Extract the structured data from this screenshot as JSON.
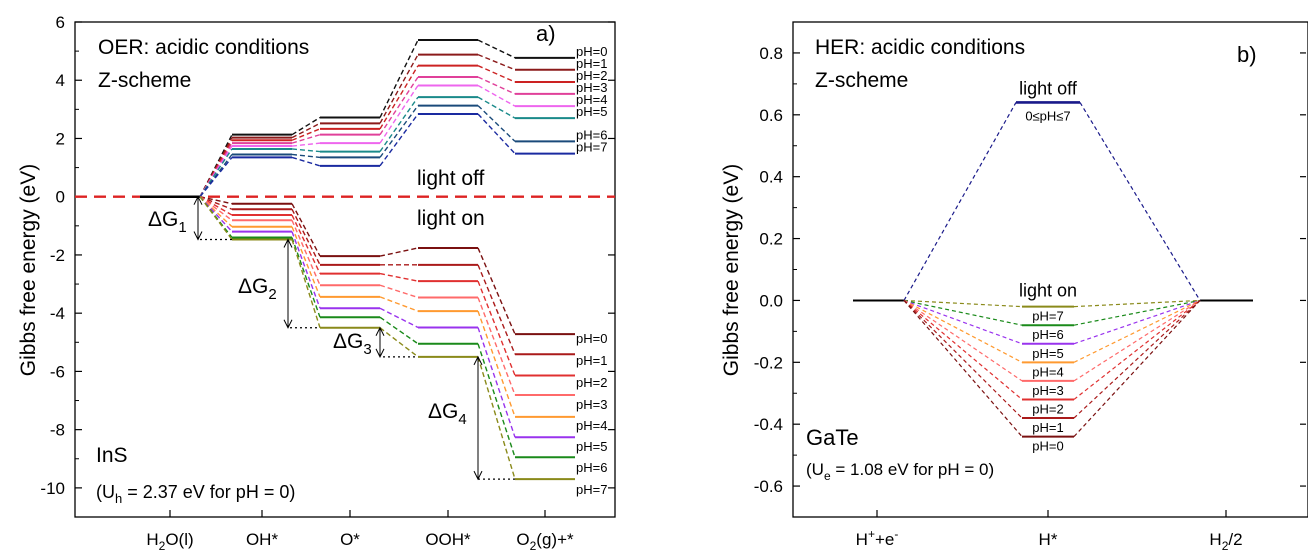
{
  "chart_data": [
    {
      "type": "line",
      "panel_label": "a)",
      "title": "OER: acidic conditions",
      "subtitle": "Z-scheme",
      "material": "InS",
      "note": "(Uₕ = 2.37 eV for pH = 0)",
      "note_parts": {
        "pre": "(U",
        "sub": "h",
        "post": " = 2.37 eV for pH = 0)"
      },
      "ylabel": "Gibbs free energy (eV)",
      "ylim": [
        -11,
        6
      ],
      "yticks": [
        "6",
        "4",
        "2",
        "0",
        "-2",
        "-4",
        "-6",
        "-8",
        "-10"
      ],
      "categories": [
        {
          "pre": "H",
          "sub": "2",
          "post": "O(l)"
        },
        {
          "pre": "OH*",
          "sub": "",
          "post": ""
        },
        {
          "pre": "O*",
          "sub": "",
          "post": ""
        },
        {
          "pre": "OOH*",
          "sub": "",
          "post": ""
        },
        {
          "pre": "O",
          "sub": "2",
          "post": "(g)+*"
        }
      ],
      "divider_y": 0,
      "divider_color": "#dd2222",
      "region_labels": {
        "off": "light off",
        "on": "light on"
      },
      "delta_labels": [
        "ΔG",
        "ΔG",
        "ΔG",
        "ΔG"
      ],
      "delta_subs": [
        "1",
        "2",
        "3",
        "4"
      ],
      "light_off_series": [
        {
          "name": "pH=0",
          "color": "#111111",
          "values": [
            0,
            2.13,
            2.72,
            5.38,
            4.77
          ]
        },
        {
          "name": "pH=1",
          "color": "#8b1a1a",
          "values": [
            0,
            2.03,
            2.52,
            4.88,
            4.36
          ]
        },
        {
          "name": "pH=2",
          "color": "#cc2222",
          "values": [
            0,
            1.94,
            2.33,
            4.5,
            3.94
          ]
        },
        {
          "name": "pH=3",
          "color": "#e0409a",
          "values": [
            0,
            1.84,
            2.13,
            4.11,
            3.53
          ]
        },
        {
          "name": "pH=4",
          "color": "#ee66ee",
          "values": [
            0,
            1.74,
            1.84,
            3.82,
            3.11
          ]
        },
        {
          "name": "pH=5",
          "color": "#1a8a8a",
          "values": [
            0,
            1.64,
            1.55,
            3.42,
            2.7
          ]
        },
        {
          "name": "pH=6",
          "color": "#1a4a7a",
          "values": [
            0,
            1.45,
            1.35,
            3.13,
            1.9
          ]
        },
        {
          "name": "pH=7",
          "color": "#1a2aa0",
          "values": [
            0,
            1.35,
            1.06,
            2.84,
            1.48
          ]
        }
      ],
      "light_on_series": [
        {
          "name": "pH=0",
          "color": "#7a1010",
          "values": [
            0,
            -0.24,
            -2.04,
            -1.76,
            -4.72
          ]
        },
        {
          "name": "pH=1",
          "color": "#aa1a1a",
          "values": [
            0,
            -0.43,
            -2.34,
            -2.34,
            -5.41
          ]
        },
        {
          "name": "pH=2",
          "color": "#e03030",
          "values": [
            0,
            -0.63,
            -2.64,
            -2.9,
            -6.14
          ]
        },
        {
          "name": "pH=3",
          "color": "#ff6a6a",
          "values": [
            0,
            -0.81,
            -3.04,
            -3.46,
            -6.81
          ]
        },
        {
          "name": "pH=4",
          "color": "#ff9a30",
          "values": [
            0,
            -1.03,
            -3.44,
            -3.93,
            -7.56
          ]
        },
        {
          "name": "pH=5",
          "color": "#9933ee",
          "values": [
            0,
            -1.2,
            -3.83,
            -4.49,
            -8.26
          ]
        },
        {
          "name": "pH=6",
          "color": "#1a8a1a",
          "values": [
            0,
            -1.4,
            -4.14,
            -5.05,
            -8.95
          ]
        },
        {
          "name": "pH=7",
          "color": "#8a8a1a",
          "values": [
            0,
            -1.47,
            -4.5,
            -5.5,
            -9.7
          ]
        }
      ]
    },
    {
      "type": "line",
      "panel_label": "b)",
      "title": "HER: acidic conditions",
      "subtitle": "Z-scheme",
      "material": "GaTe",
      "note": "(Uₑ = 1.08 eV for pH = 0)",
      "note_parts": {
        "pre": "(U",
        "sub": "e",
        "post": " = 1.08 eV for pH = 0)"
      },
      "ylabel": "Gibbs free energy (eV)",
      "ylim": [
        -0.7,
        0.9
      ],
      "yticks": [
        "0.8",
        "0.6",
        "0.4",
        "0.2",
        "0.0",
        "-0.2",
        "-0.4",
        "-0.6"
      ],
      "categories": [
        {
          "pre": "H",
          "sup": "+",
          "mid": "+e",
          "sup2": "-",
          "sub": "",
          "post": ""
        },
        {
          "pre": "H*",
          "sup": "",
          "mid": "",
          "sup2": "",
          "sub": "",
          "post": ""
        },
        {
          "pre": "H",
          "sup": "",
          "mid": "",
          "sup2": "",
          "sub": "2",
          "post": "/2"
        }
      ],
      "light_off": {
        "label": "light off",
        "range_label": "0≤pH≤7",
        "color": "#1a1a8a",
        "values": [
          0,
          0.64,
          0
        ]
      },
      "light_on_label": "light on",
      "light_on_series": [
        {
          "name": "pH=7",
          "color": "#8a8a1a",
          "values": [
            0,
            -0.02,
            0
          ]
        },
        {
          "name": "pH=6",
          "color": "#1a8a1a",
          "values": [
            0,
            -0.08,
            0
          ]
        },
        {
          "name": "pH=5",
          "color": "#9933ee",
          "values": [
            0,
            -0.14,
            0
          ]
        },
        {
          "name": "pH=4",
          "color": "#ff9a30",
          "values": [
            0,
            -0.2,
            0
          ]
        },
        {
          "name": "pH=3",
          "color": "#ff6a6a",
          "values": [
            0,
            -0.26,
            0
          ]
        },
        {
          "name": "pH=2",
          "color": "#e03030",
          "values": [
            0,
            -0.32,
            0
          ]
        },
        {
          "name": "pH=1",
          "color": "#aa1a1a",
          "values": [
            0,
            -0.38,
            0
          ]
        },
        {
          "name": "pH=0",
          "color": "#7a1010",
          "values": [
            0,
            -0.44,
            0
          ]
        }
      ]
    }
  ]
}
